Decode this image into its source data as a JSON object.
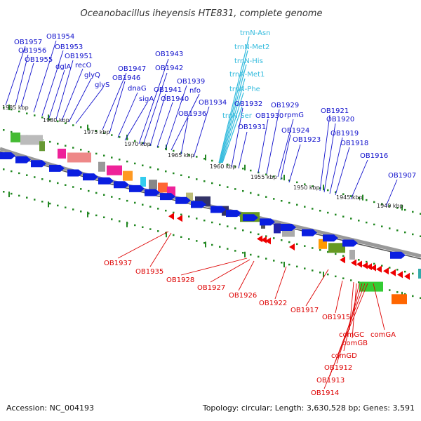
{
  "title": "Oceanobacillus iheyensis HTE831, complete genome",
  "footer": {
    "accession": "Accession: NC_004193",
    "summary": "Topology: circular; Length: 3,630,528 bp; Genes: 3,591"
  },
  "colors": {
    "forward_label": "#1010cc",
    "reverse_label": "#dd0000",
    "rna_label": "#33bbdd",
    "backbone": "#888888",
    "tick": "#228822",
    "scale_text": "#222222"
  },
  "scale_labels": [
    "1985 kbp",
    "1980 kbp",
    "1975 kbp",
    "1970 kbp",
    "1965 kbp",
    "1960 kbp",
    "1955 kbp",
    "1950 kbp",
    "1945 kbp",
    "1940 kbp"
  ],
  "rna_labels": [
    "trnN-Asn",
    "trnN-Met2",
    "trnN-His",
    "trnN-Met1",
    "trnN-Phe",
    "trnN-Ser"
  ],
  "forward_labels": [
    "OB1957",
    "OB1956",
    "OB1955",
    "OB1954",
    "OB1953",
    "dglA",
    "OB1951",
    "recO",
    "glyQ",
    "glyS",
    "OB1947",
    "OB1946",
    "dnaG",
    "sigA",
    "OB1943",
    "OB1942",
    "OB1941",
    "OB1940",
    "OB1939",
    "nfo",
    "OB1936",
    "OB1934",
    "OB1932",
    "OB1931",
    "OB1930",
    "OB1929",
    "rpmG",
    "OB1924",
    "OB1923",
    "OB1921",
    "OB1920",
    "OB1919",
    "OB1918",
    "OB1916",
    "OB1907"
  ],
  "reverse_labels": [
    "OB1937",
    "OB1935",
    "OB1928",
    "OB1927",
    "OB1926",
    "OB1922",
    "OB1917",
    "OB1915",
    "comGC",
    "comGB",
    "comGA",
    "comGD",
    "OB1912",
    "OB1913",
    "OB1914"
  ]
}
